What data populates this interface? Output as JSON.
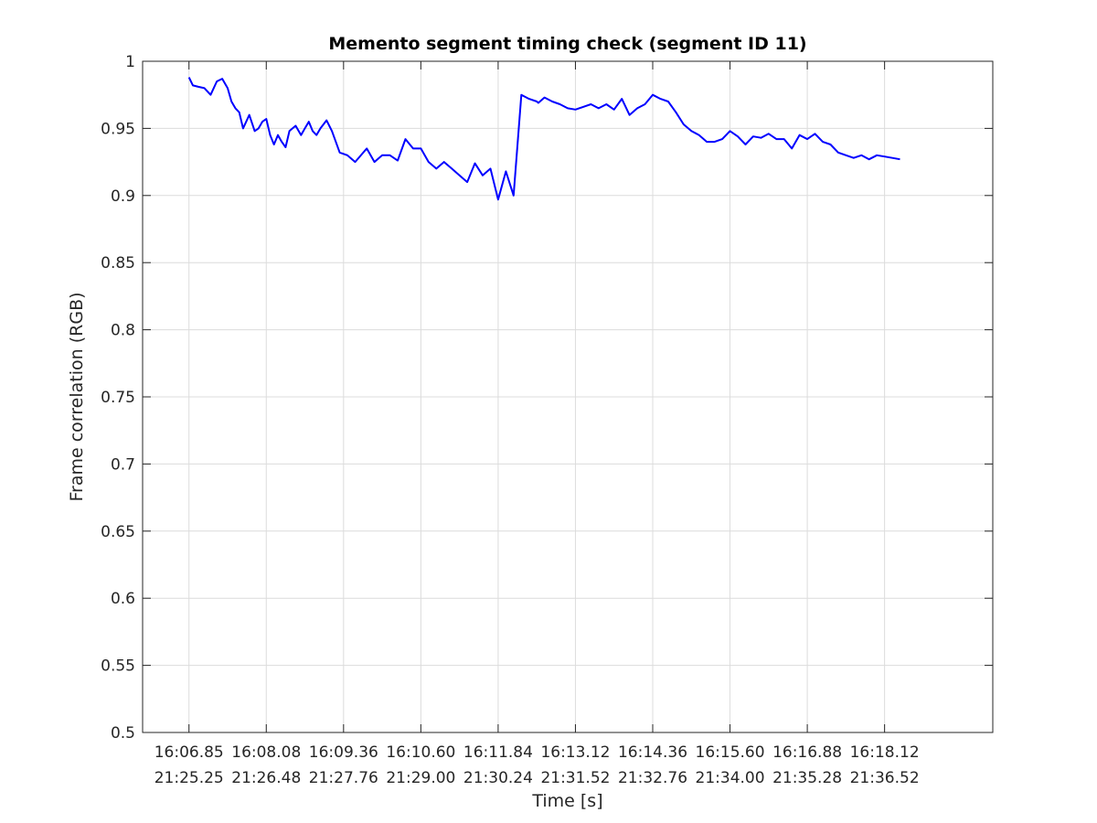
{
  "chart_data": {
    "type": "line",
    "title": "Memento segment timing check (segment ID 11)",
    "xlabel": "Time [s]",
    "ylabel": "Frame correlation (RGB)",
    "ylim": [
      0.5,
      1
    ],
    "yticks": [
      "0.5",
      "0.55",
      "0.6",
      "0.65",
      "0.7",
      "0.75",
      "0.8",
      "0.85",
      "0.9",
      "0.95",
      "1"
    ],
    "xlim": [
      -0.6,
      10.4
    ],
    "xticks": [
      {
        "line1": "16:06.85",
        "line2": "21:25.25"
      },
      {
        "line1": "16:08.08",
        "line2": "21:26.48"
      },
      {
        "line1": "16:09.36",
        "line2": "21:27.76"
      },
      {
        "line1": "16:10.60",
        "line2": "21:29.00"
      },
      {
        "line1": "16:11.84",
        "line2": "21:30.24"
      },
      {
        "line1": "16:13.12",
        "line2": "21:31.52"
      },
      {
        "line1": "16:14.36",
        "line2": "21:32.76"
      },
      {
        "line1": "16:15.60",
        "line2": "21:34.00"
      },
      {
        "line1": "16:16.88",
        "line2": "21:35.28"
      },
      {
        "line1": "16:18.12",
        "line2": "21:36.52"
      }
    ],
    "grid": true,
    "series_color": "#0000ff",
    "series": [
      {
        "x": [
          0,
          0.05,
          0.12,
          0.2,
          0.28,
          0.36,
          0.43,
          0.5,
          0.55,
          0.6,
          0.65,
          0.7,
          0.78,
          0.85,
          0.9,
          0.95,
          1.0,
          1.05,
          1.1,
          1.15,
          1.2,
          1.25,
          1.3,
          1.38,
          1.45,
          1.5,
          1.55,
          1.6,
          1.65,
          1.7,
          1.78,
          1.85,
          1.95,
          2.05,
          2.15,
          2.3,
          2.4,
          2.5,
          2.6,
          2.7,
          2.8,
          2.9,
          3.0,
          3.1,
          3.2,
          3.3,
          3.4,
          3.5,
          3.6,
          3.7,
          3.8,
          3.9,
          4.0,
          4.1,
          4.2,
          4.3,
          4.4,
          4.5,
          4.52,
          4.6,
          4.7,
          4.8,
          4.9,
          5.0,
          5.1,
          5.2,
          5.3,
          5.4,
          5.5,
          5.6,
          5.7,
          5.8,
          5.9,
          6.0,
          6.1,
          6.2,
          6.3,
          6.4,
          6.5,
          6.6,
          6.7,
          6.8,
          6.9,
          7.0,
          7.1,
          7.2,
          7.3,
          7.4,
          7.5,
          7.6,
          7.7,
          7.8,
          7.9,
          8.0,
          8.1,
          8.2,
          8.3,
          8.4,
          8.5,
          8.6,
          8.7,
          8.8,
          8.9,
          9.0,
          9.1,
          9.2
        ],
        "y": [
          0.988,
          0.982,
          0.981,
          0.98,
          0.975,
          0.985,
          0.987,
          0.98,
          0.97,
          0.965,
          0.962,
          0.95,
          0.96,
          0.948,
          0.95,
          0.955,
          0.957,
          0.945,
          0.938,
          0.945,
          0.94,
          0.936,
          0.948,
          0.952,
          0.945,
          0.95,
          0.955,
          0.948,
          0.945,
          0.95,
          0.956,
          0.948,
          0.932,
          0.93,
          0.925,
          0.935,
          0.925,
          0.93,
          0.93,
          0.926,
          0.942,
          0.935,
          0.935,
          0.925,
          0.92,
          0.925,
          0.92,
          0.915,
          0.91,
          0.924,
          0.915,
          0.92,
          0.897,
          0.918,
          0.9,
          0.975,
          0.972,
          0.97,
          0.969,
          0.973,
          0.97,
          0.968,
          0.965,
          0.964,
          0.966,
          0.968,
          0.965,
          0.968,
          0.964,
          0.972,
          0.96,
          0.965,
          0.968,
          0.975,
          0.972,
          0.97,
          0.962,
          0.953,
          0.948,
          0.945,
          0.94,
          0.94,
          0.942,
          0.948,
          0.944,
          0.938,
          0.944,
          0.943,
          0.946,
          0.942,
          0.942,
          0.935,
          0.945,
          0.942,
          0.946,
          0.94,
          0.938,
          0.932,
          0.93,
          0.928,
          0.93,
          0.927,
          0.93,
          0.929,
          0.928,
          0.927
        ]
      }
    ]
  }
}
